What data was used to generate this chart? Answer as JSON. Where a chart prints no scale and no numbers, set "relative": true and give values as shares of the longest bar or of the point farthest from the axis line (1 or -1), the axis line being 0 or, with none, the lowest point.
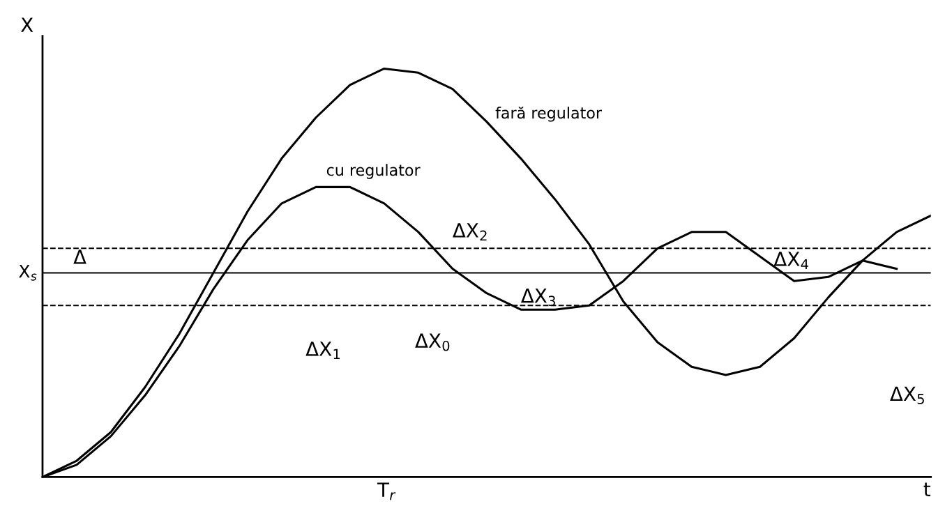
{
  "chart_data": {
    "type": "line",
    "relative": true,
    "xlabel": "t",
    "ylabel": "X",
    "legend": false,
    "marker": "none",
    "line_style": "solid",
    "categories": [
      null,
      null,
      null,
      null,
      null,
      null,
      null,
      null,
      null,
      null,
      null,
      null,
      null,
      null,
      null,
      null,
      null,
      null,
      null,
      null,
      null,
      null,
      null,
      null,
      null,
      null,
      null
    ],
    "series": [
      {
        "name": "fară regulator",
        "color": "#000000",
        "values": [
          0,
          0.04,
          0.11,
          0.22,
          0.35,
          0.5,
          0.65,
          0.78,
          0.88,
          0.96,
          1.0,
          0.99,
          0.95,
          0.87,
          0.78,
          0.68,
          0.57,
          0.43,
          0.33,
          0.27,
          0.25,
          0.27,
          0.34,
          0.44,
          0.53,
          0.6,
          0.64
        ]
      },
      {
        "name": "cu regulator",
        "color": "#000000",
        "values": [
          0,
          0.03,
          0.1,
          0.2,
          0.32,
          0.46,
          0.58,
          0.67,
          0.71,
          0.71,
          0.67,
          0.6,
          0.51,
          0.45,
          0.41,
          0.41,
          0.42,
          0.48,
          0.56,
          0.6,
          0.6,
          0.54,
          0.48,
          0.49,
          0.53,
          0.51,
          null
        ]
      }
    ],
    "ref_lines": [
      {
        "axis": "y",
        "value": 0.5,
        "label": "X$_{s}$",
        "line_style": "solid"
      },
      {
        "axis": "y",
        "value": 0.56,
        "line_style": "dashed"
      },
      {
        "axis": "y",
        "value": 0.42,
        "line_style": "dashed"
      }
    ],
    "annotations": [
      "ΔX$_{0}$",
      "ΔX$_{1}$",
      "ΔX$_{2}$",
      "ΔX$_{3}$",
      "ΔX$_{4}$",
      "ΔX$_{5}$",
      "T$_{r}$",
      "Δ"
    ]
  }
}
